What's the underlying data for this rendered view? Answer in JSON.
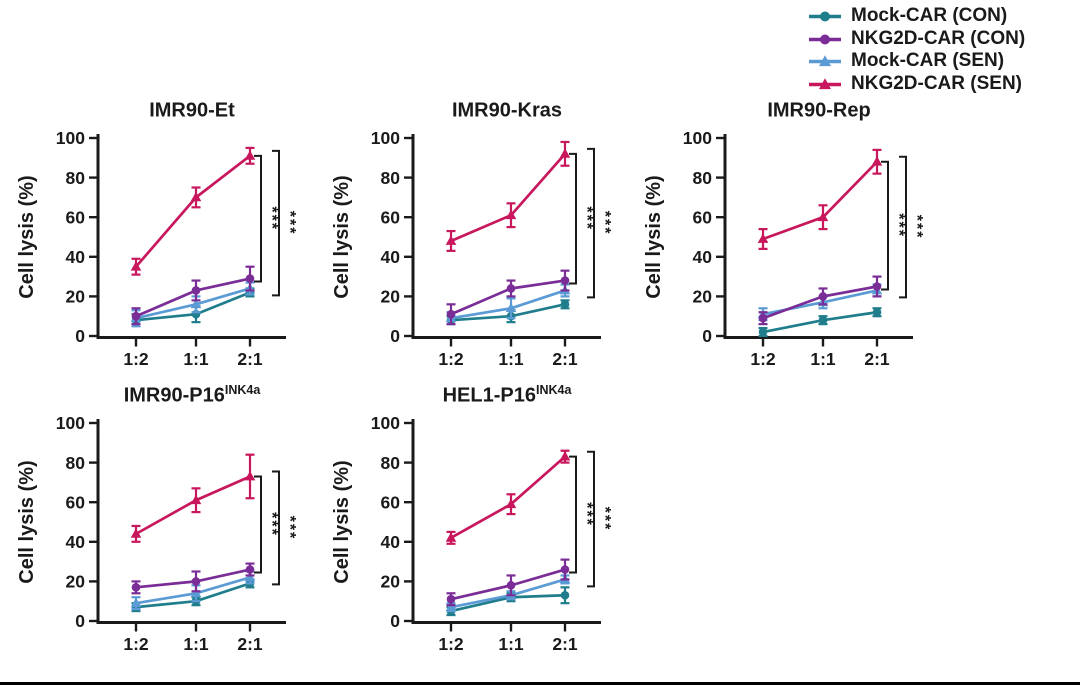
{
  "page": {
    "background": "#ffffff",
    "text_color": "#1a1a1a"
  },
  "legend": {
    "position": "top-right",
    "items": [
      {
        "label": "Mock-CAR (CON)",
        "color": "#1F7D8C",
        "marker": "circle"
      },
      {
        "label": "NKG2D-CAR (CON)",
        "color": "#7A2D96",
        "marker": "circle"
      },
      {
        "label": "Mock-CAR (SEN)",
        "color": "#5B9BD5",
        "marker": "triangle"
      },
      {
        "label": "NKG2D-CAR (SEN)",
        "color": "#C8175D",
        "marker": "triangle"
      }
    ]
  },
  "chart_data": [
    {
      "type": "line",
      "title": "IMR90-Et",
      "title_sup": "",
      "xlabel": "",
      "ylabel": "Cell lysis (%)",
      "ylim": [
        0,
        100
      ],
      "yticks": [
        0,
        20,
        40,
        60,
        80,
        100
      ],
      "categories": [
        "1:2",
        "1:1",
        "2:1"
      ],
      "grid": false,
      "series": [
        {
          "name": "Mock-CAR (CON)",
          "color": "#1F7D8C",
          "marker": "circle",
          "values": [
            8,
            11,
            22
          ],
          "errors": [
            3,
            4,
            2
          ]
        },
        {
          "name": "NKG2D-CAR (CON)",
          "color": "#7A2D96",
          "marker": "circle",
          "values": [
            10,
            23,
            29
          ],
          "errors": [
            4,
            5,
            6
          ]
        },
        {
          "name": "Mock-CAR (SEN)",
          "color": "#5B9BD5",
          "marker": "triangle",
          "values": [
            9,
            16,
            24
          ],
          "errors": [
            4,
            4,
            3
          ]
        },
        {
          "name": "NKG2D-CAR (SEN)",
          "color": "#C8175D",
          "marker": "triangle",
          "values": [
            35,
            70,
            91
          ],
          "errors": [
            4,
            5,
            4
          ]
        }
      ],
      "significance": [
        "***",
        "***"
      ]
    },
    {
      "type": "line",
      "title": "IMR90-Kras",
      "title_sup": "",
      "xlabel": "",
      "ylabel": "Cell lysis (%)",
      "ylim": [
        0,
        100
      ],
      "yticks": [
        0,
        20,
        40,
        60,
        80,
        100
      ],
      "categories": [
        "1:2",
        "1:1",
        "2:1"
      ],
      "grid": false,
      "series": [
        {
          "name": "Mock-CAR (CON)",
          "color": "#1F7D8C",
          "marker": "circle",
          "values": [
            8,
            10,
            16
          ],
          "errors": [
            2,
            3,
            2
          ]
        },
        {
          "name": "NKG2D-CAR (CON)",
          "color": "#7A2D96",
          "marker": "circle",
          "values": [
            11,
            24,
            28
          ],
          "errors": [
            5,
            4,
            5
          ]
        },
        {
          "name": "Mock-CAR (SEN)",
          "color": "#5B9BD5",
          "marker": "triangle",
          "values": [
            9,
            14,
            23
          ],
          "errors": [
            3,
            5,
            3
          ]
        },
        {
          "name": "NKG2D-CAR (SEN)",
          "color": "#C8175D",
          "marker": "triangle",
          "values": [
            48,
            61,
            92
          ],
          "errors": [
            5,
            6,
            6
          ]
        }
      ],
      "significance": [
        "***",
        "***"
      ]
    },
    {
      "type": "line",
      "title": "IMR90-Rep",
      "title_sup": "",
      "xlabel": "",
      "ylabel": "Cell lysis (%)",
      "ylim": [
        0,
        100
      ],
      "yticks": [
        0,
        20,
        40,
        60,
        80,
        100
      ],
      "categories": [
        "1:2",
        "1:1",
        "2:1"
      ],
      "grid": false,
      "series": [
        {
          "name": "Mock-CAR (CON)",
          "color": "#1F7D8C",
          "marker": "circle",
          "values": [
            2,
            8,
            12
          ],
          "errors": [
            2,
            2,
            2
          ]
        },
        {
          "name": "NKG2D-CAR (CON)",
          "color": "#7A2D96",
          "marker": "circle",
          "values": [
            9,
            20,
            25
          ],
          "errors": [
            3,
            4,
            5
          ]
        },
        {
          "name": "Mock-CAR (SEN)",
          "color": "#5B9BD5",
          "marker": "triangle",
          "values": [
            11,
            17,
            23
          ],
          "errors": [
            3,
            3,
            3
          ]
        },
        {
          "name": "NKG2D-CAR (SEN)",
          "color": "#C8175D",
          "marker": "triangle",
          "values": [
            49,
            60,
            88
          ],
          "errors": [
            5,
            6,
            6
          ]
        }
      ],
      "significance": [
        "***",
        "***"
      ]
    },
    {
      "type": "line",
      "title": "IMR90-P16",
      "title_sup": "INK4a",
      "xlabel": "",
      "ylabel": "Cell lysis (%)",
      "ylim": [
        0,
        100
      ],
      "yticks": [
        0,
        20,
        40,
        60,
        80,
        100
      ],
      "categories": [
        "1:2",
        "1:1",
        "2:1"
      ],
      "grid": false,
      "series": [
        {
          "name": "Mock-CAR (CON)",
          "color": "#1F7D8C",
          "marker": "circle",
          "values": [
            7,
            10,
            19
          ],
          "errors": [
            2,
            2,
            2
          ]
        },
        {
          "name": "NKG2D-CAR (CON)",
          "color": "#7A2D96",
          "marker": "circle",
          "values": [
            17,
            20,
            26
          ],
          "errors": [
            3,
            5,
            3
          ]
        },
        {
          "name": "Mock-CAR (SEN)",
          "color": "#5B9BD5",
          "marker": "triangle",
          "values": [
            9,
            14,
            22
          ],
          "errors": [
            3,
            4,
            3
          ]
        },
        {
          "name": "NKG2D-CAR (SEN)",
          "color": "#C8175D",
          "marker": "triangle",
          "values": [
            44,
            61,
            73
          ],
          "errors": [
            4,
            6,
            11
          ]
        }
      ],
      "significance": [
        "***",
        "***"
      ]
    },
    {
      "type": "line",
      "title": "HEL1-P16",
      "title_sup": "INK4a",
      "xlabel": "",
      "ylabel": "Cell lysis (%)",
      "ylim": [
        0,
        100
      ],
      "yticks": [
        0,
        20,
        40,
        60,
        80,
        100
      ],
      "categories": [
        "1:2",
        "1:1",
        "2:1"
      ],
      "grid": false,
      "series": [
        {
          "name": "Mock-CAR (CON)",
          "color": "#1F7D8C",
          "marker": "circle",
          "values": [
            5,
            12,
            13
          ],
          "errors": [
            2,
            2,
            4
          ]
        },
        {
          "name": "NKG2D-CAR (CON)",
          "color": "#7A2D96",
          "marker": "circle",
          "values": [
            11,
            18,
            26
          ],
          "errors": [
            3,
            5,
            5
          ]
        },
        {
          "name": "Mock-CAR (SEN)",
          "color": "#5B9BD5",
          "marker": "triangle",
          "values": [
            7,
            13,
            21
          ],
          "errors": [
            2,
            2,
            2
          ]
        },
        {
          "name": "NKG2D-CAR (SEN)",
          "color": "#C8175D",
          "marker": "triangle",
          "values": [
            42,
            59,
            83
          ],
          "errors": [
            3,
            5,
            3
          ]
        }
      ],
      "significance": [
        "***",
        "***"
      ]
    }
  ]
}
